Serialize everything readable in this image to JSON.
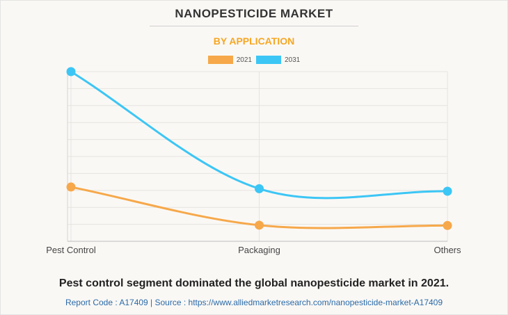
{
  "header": {
    "title": "NANOPESTICIDE MARKET",
    "subtitle": "BY APPLICATION"
  },
  "legend": {
    "items": [
      {
        "label": "2021",
        "color": "#f6a84a"
      },
      {
        "label": "2031",
        "color": "#3cc6f5"
      }
    ]
  },
  "chart_data": {
    "type": "line",
    "categories": [
      "Pest Control",
      "Packaging",
      "Others"
    ],
    "series": [
      {
        "name": "2021",
        "values": [
          32,
          9.5,
          9.3
        ],
        "color": "#f6a84a"
      },
      {
        "name": "2031",
        "values": [
          100,
          31,
          29.5
        ],
        "color": "#3cc6f5"
      }
    ],
    "ylim": [
      0,
      100
    ],
    "y_tick_labels_shown": false,
    "grid": true,
    "smooth": true,
    "legend_position": "top-center"
  },
  "footer": {
    "caption": "Pest control segment dominated the global nanopesticide market in 2021.",
    "source": "Report Code : A17409  |  Source : https://www.alliedmarketresearch.com/nanopesticide-market-A17409"
  }
}
